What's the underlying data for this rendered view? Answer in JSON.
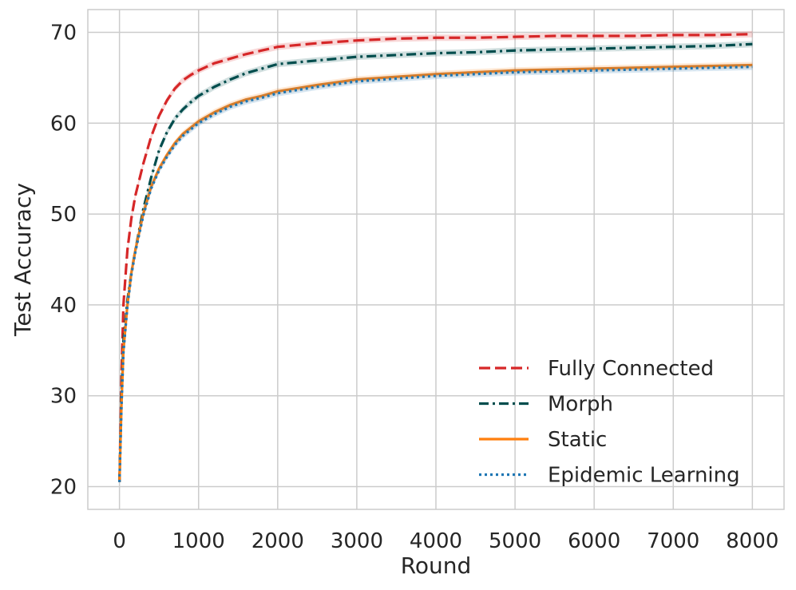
{
  "chart_data": {
    "type": "line",
    "title": "",
    "xlabel": "Round",
    "ylabel": "Test Accuracy",
    "xlim": [
      -400,
      8400
    ],
    "ylim": [
      17.5,
      72.5
    ],
    "xticks": [
      0,
      1000,
      2000,
      3000,
      4000,
      5000,
      6000,
      7000,
      8000
    ],
    "yticks": [
      20,
      30,
      40,
      50,
      60,
      70
    ],
    "grid": true,
    "legend_position": "lower-right",
    "series": [
      {
        "name": "Fully Connected",
        "color": "#d62728",
        "style": "dashed",
        "x": [
          0,
          25,
          50,
          100,
          150,
          200,
          300,
          400,
          500,
          600,
          700,
          800,
          900,
          1000,
          1200,
          1400,
          1600,
          1800,
          2000,
          2500,
          3000,
          3500,
          4000,
          4500,
          5000,
          5500,
          6000,
          6500,
          7000,
          7500,
          8000
        ],
        "values": [
          20.5,
          32.0,
          40.0,
          46.0,
          49.5,
          52.0,
          55.5,
          58.5,
          60.8,
          62.5,
          63.8,
          64.7,
          65.3,
          65.8,
          66.6,
          67.1,
          67.6,
          68.0,
          68.4,
          68.8,
          69.1,
          69.3,
          69.4,
          69.4,
          69.5,
          69.6,
          69.6,
          69.6,
          69.7,
          69.7,
          69.8
        ]
      },
      {
        "name": "Morph",
        "color": "#004d4d",
        "style": "dashdot",
        "x": [
          0,
          25,
          50,
          100,
          150,
          200,
          300,
          400,
          500,
          600,
          700,
          800,
          900,
          1000,
          1200,
          1400,
          1600,
          1800,
          2000,
          2500,
          3000,
          3500,
          4000,
          4500,
          5000,
          5500,
          6000,
          6500,
          7000,
          7500,
          8000
        ],
        "values": [
          20.5,
          30.0,
          36.0,
          40.5,
          43.5,
          46.0,
          50.5,
          54.0,
          57.0,
          59.0,
          60.5,
          61.5,
          62.3,
          63.0,
          64.0,
          64.8,
          65.5,
          66.0,
          66.5,
          66.9,
          67.3,
          67.5,
          67.7,
          67.8,
          68.0,
          68.1,
          68.2,
          68.3,
          68.4,
          68.5,
          68.7
        ]
      },
      {
        "name": "Static",
        "color": "#ff7f0e",
        "style": "solid",
        "x": [
          0,
          25,
          50,
          100,
          150,
          200,
          300,
          400,
          500,
          600,
          700,
          800,
          900,
          1000,
          1200,
          1400,
          1600,
          1800,
          2000,
          2500,
          3000,
          3500,
          4000,
          4500,
          5000,
          5500,
          6000,
          6500,
          7000,
          7500,
          8000
        ],
        "values": [
          20.5,
          29.0,
          35.0,
          40.0,
          43.5,
          46.0,
          50.0,
          53.0,
          55.0,
          56.5,
          57.8,
          58.8,
          59.5,
          60.2,
          61.2,
          62.0,
          62.6,
          63.0,
          63.5,
          64.2,
          64.8,
          65.1,
          65.4,
          65.6,
          65.8,
          65.9,
          66.0,
          66.1,
          66.2,
          66.3,
          66.4
        ]
      },
      {
        "name": "Epidemic Learning",
        "color": "#1f77b4",
        "style": "dotted",
        "x": [
          0,
          25,
          50,
          100,
          150,
          200,
          300,
          400,
          500,
          600,
          700,
          800,
          900,
          1000,
          1200,
          1400,
          1600,
          1800,
          2000,
          2500,
          3000,
          3500,
          4000,
          4500,
          5000,
          5500,
          6000,
          6500,
          7000,
          7500,
          8000
        ],
        "values": [
          20.5,
          28.8,
          34.8,
          39.8,
          43.3,
          45.8,
          49.8,
          52.8,
          54.8,
          56.3,
          57.6,
          58.6,
          59.3,
          60.0,
          61.0,
          61.8,
          62.4,
          62.8,
          63.3,
          64.0,
          64.6,
          64.9,
          65.2,
          65.4,
          65.6,
          65.7,
          65.8,
          65.9,
          66.0,
          66.1,
          66.2
        ]
      }
    ]
  }
}
